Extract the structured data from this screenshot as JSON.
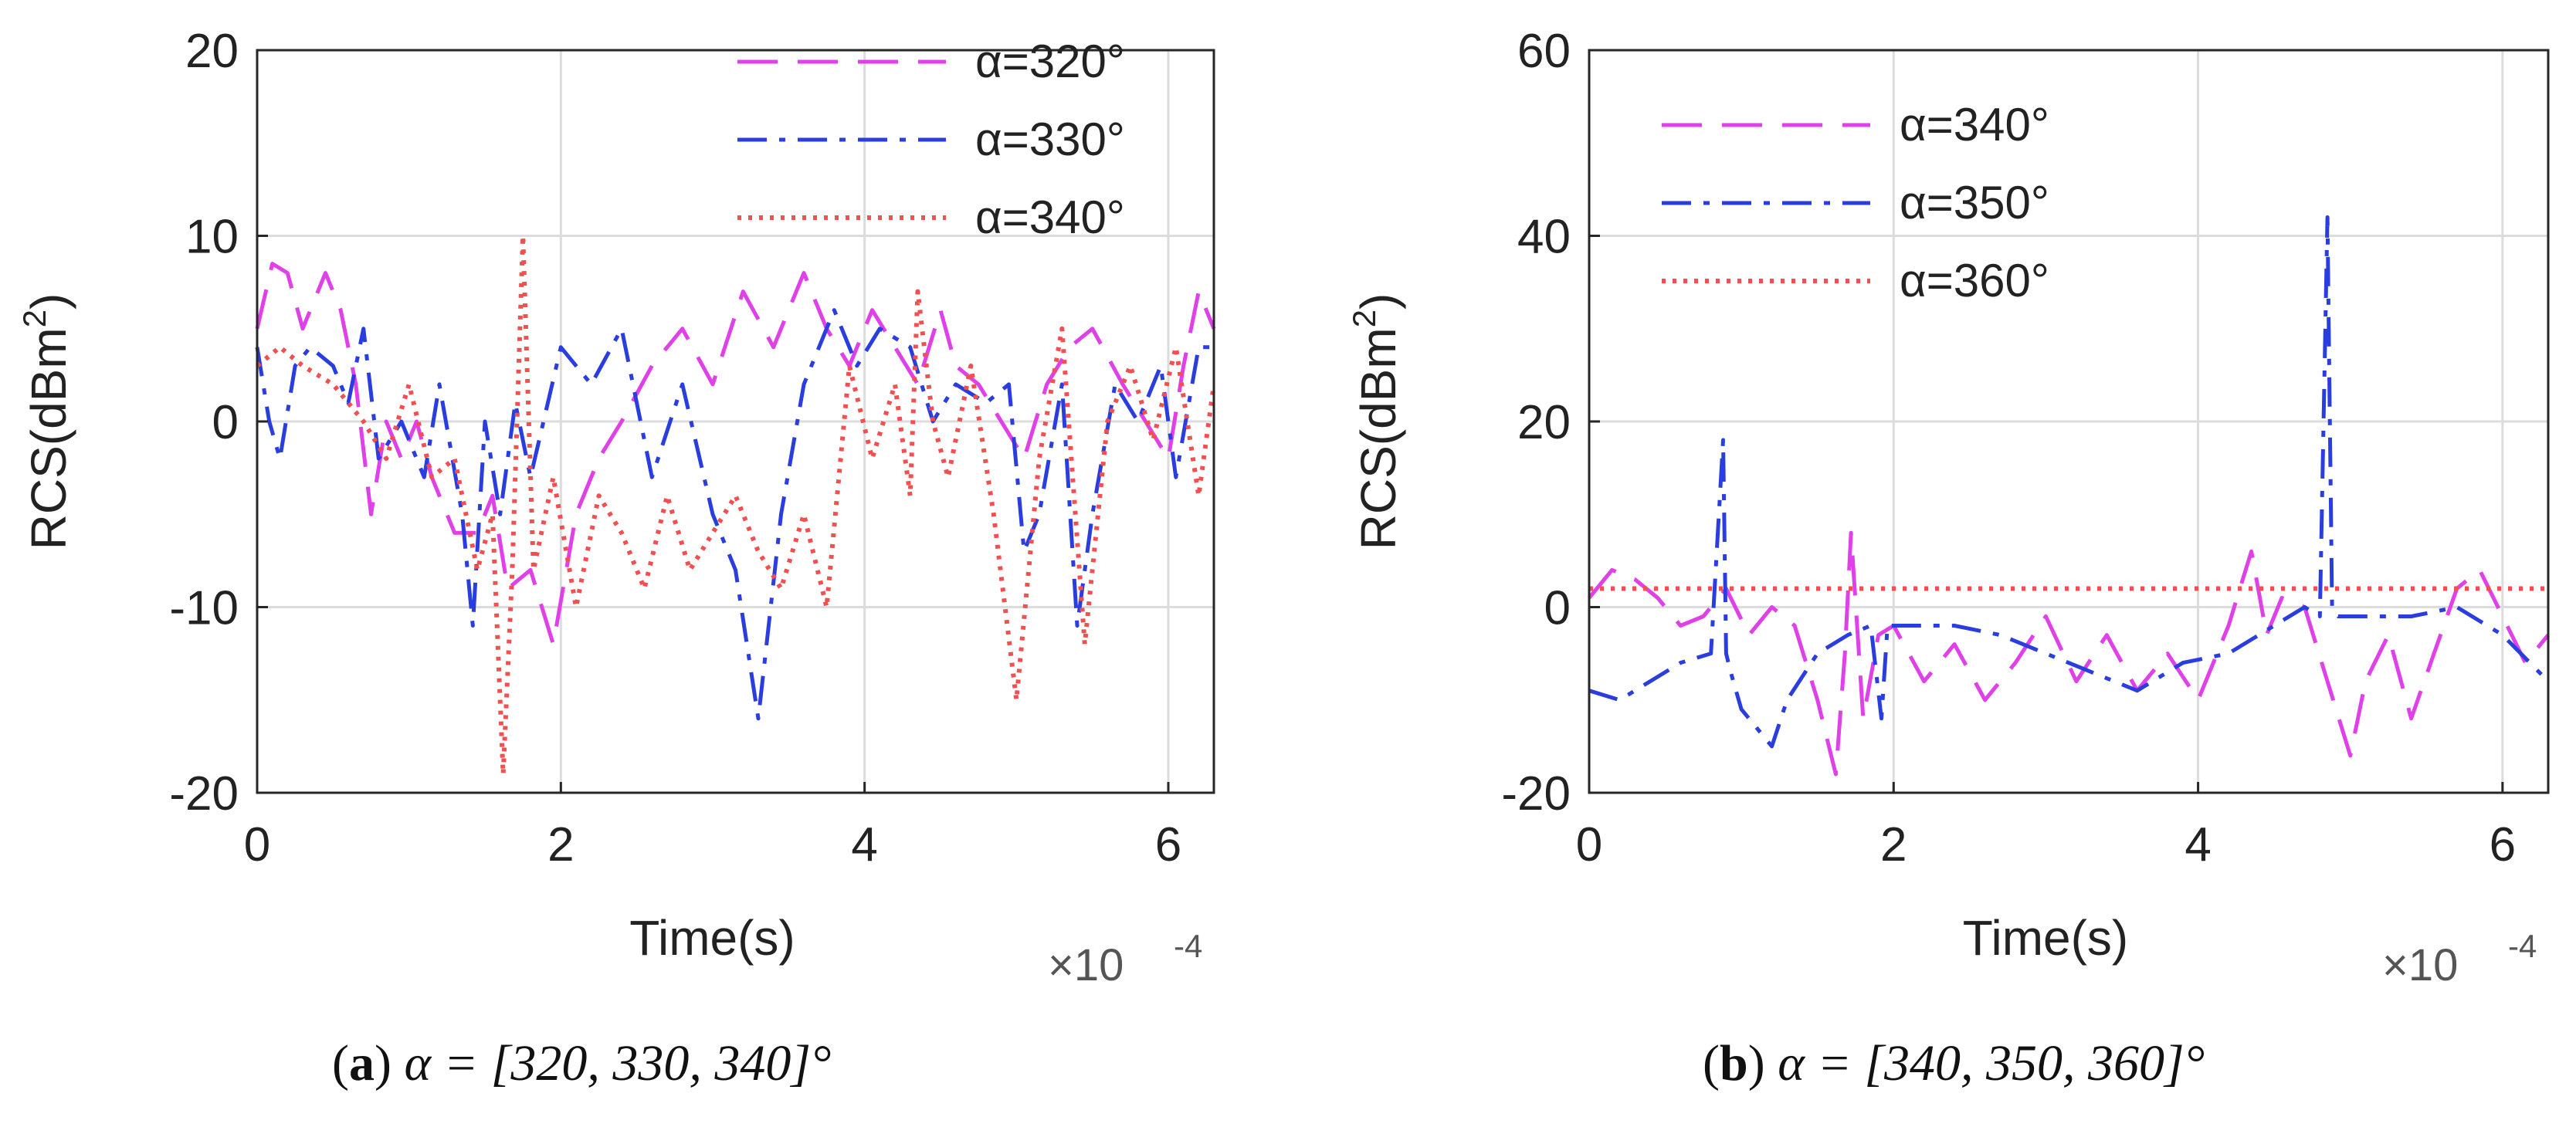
{
  "chart_data": [
    {
      "type": "line",
      "panel": "a",
      "caption_letter": "a",
      "caption_text": "α = [320, 330, 340]°",
      "xlabel": "Time(s)",
      "x_multiplier": "×10",
      "x_multiplier_exp": "-4",
      "ylabel_main": "RCS(dBm",
      "ylabel_sup": "2",
      "ylabel_tail": ")",
      "xlim": [
        0,
        6.3
      ],
      "ylim": [
        -20,
        20
      ],
      "xticks": [
        0,
        2,
        4,
        6
      ],
      "yticks": [
        -20,
        -10,
        0,
        10,
        20
      ],
      "xtick_labels": [
        "0",
        "2",
        "4",
        "6"
      ],
      "ytick_labels": [
        "-20",
        "-10",
        "0",
        "10",
        "20"
      ],
      "grid": true,
      "legend_placement": "top-right",
      "series": [
        {
          "name": "α=320°",
          "color": "#e040e8",
          "dash": "dashed",
          "x": [
            0,
            0.1,
            0.2,
            0.3,
            0.45,
            0.55,
            0.65,
            0.75,
            0.85,
            0.95,
            1.05,
            1.15,
            1.3,
            1.45,
            1.55,
            1.65,
            1.8,
            1.95,
            2.1,
            2.25,
            2.4,
            2.6,
            2.8,
            3.0,
            3.2,
            3.4,
            3.6,
            3.75,
            3.9,
            4.05,
            4.2,
            4.35,
            4.5,
            4.6,
            4.75,
            4.9,
            5.05,
            5.2,
            5.35,
            5.5,
            5.7,
            5.85,
            6.0,
            6.1,
            6.2,
            6.3
          ],
          "values": [
            5,
            8.5,
            8,
            5,
            8,
            6,
            2,
            -5,
            0,
            -2,
            0,
            -3,
            -6,
            -6,
            -4,
            -9,
            -8,
            -12,
            -5,
            -2,
            0,
            3,
            5,
            2,
            7,
            4,
            8,
            5,
            3,
            6,
            4,
            2,
            6,
            3,
            2,
            0,
            -2,
            2,
            4,
            5,
            2,
            0,
            -2,
            3,
            7,
            5
          ]
        },
        {
          "name": "α=330°",
          "color": "#2a3ee0",
          "dash": "dashdot",
          "x": [
            0,
            0.08,
            0.15,
            0.25,
            0.35,
            0.5,
            0.6,
            0.7,
            0.8,
            0.95,
            1.1,
            1.2,
            1.35,
            1.42,
            1.5,
            1.6,
            1.7,
            1.8,
            2.0,
            2.2,
            2.4,
            2.6,
            2.8,
            3.0,
            3.15,
            3.3,
            3.45,
            3.6,
            3.8,
            3.95,
            4.1,
            4.3,
            4.45,
            4.6,
            4.8,
            4.95,
            5.05,
            5.15,
            5.3,
            5.4,
            5.5,
            5.65,
            5.8,
            5.95,
            6.05,
            6.2,
            6.3
          ],
          "values": [
            4,
            0,
            -2,
            3,
            4,
            3,
            1,
            5,
            -2,
            0,
            -3,
            2,
            -5,
            -11,
            0,
            -5,
            1,
            -3,
            4,
            2,
            5,
            -3,
            2,
            -5,
            -8,
            -16,
            -5,
            2,
            6,
            3,
            5,
            4,
            0,
            2,
            1,
            2,
            -7,
            -5,
            2,
            -11,
            -5,
            2,
            0,
            3,
            -3,
            4,
            4
          ]
        },
        {
          "name": "α=340°",
          "color": "#f25050",
          "dash": "dotted",
          "x": [
            0,
            0.15,
            0.3,
            0.5,
            0.7,
            0.85,
            1.0,
            1.15,
            1.3,
            1.45,
            1.55,
            1.62,
            1.68,
            1.75,
            1.82,
            1.95,
            2.1,
            2.25,
            2.4,
            2.55,
            2.7,
            2.85,
            3.0,
            3.15,
            3.3,
            3.45,
            3.6,
            3.75,
            3.9,
            4.05,
            4.2,
            4.3,
            4.35,
            4.45,
            4.55,
            4.7,
            4.85,
            5.0,
            5.15,
            5.3,
            5.45,
            5.6,
            5.75,
            5.9,
            6.05,
            6.2,
            6.3
          ],
          "values": [
            3,
            4,
            3,
            2,
            0,
            -2,
            2,
            -3,
            -2,
            -8,
            -5,
            -19,
            -8,
            10,
            -8,
            -3,
            -10,
            -4,
            -6,
            -9,
            -4,
            -8,
            -6,
            -4,
            -7,
            -9,
            -5,
            -10,
            3,
            -2,
            2,
            -4,
            7,
            0,
            -3,
            3,
            -5,
            -15,
            -2,
            5,
            -12,
            0,
            3,
            -1,
            4,
            -4,
            2
          ]
        }
      ]
    },
    {
      "type": "line",
      "panel": "b",
      "caption_letter": "b",
      "caption_text": "α = [340, 350, 360]°",
      "xlabel": "Time(s)",
      "x_multiplier": "×10",
      "x_multiplier_exp": "-4",
      "ylabel_main": "RCS(dBm",
      "ylabel_sup": "2",
      "ylabel_tail": ")",
      "xlim": [
        0,
        6.3
      ],
      "ylim": [
        -20,
        60
      ],
      "xticks": [
        0,
        2,
        4,
        6
      ],
      "yticks": [
        -20,
        0,
        20,
        40,
        60
      ],
      "xtick_labels": [
        "0",
        "2",
        "4",
        "6"
      ],
      "ytick_labels": [
        "-20",
        "0",
        "20",
        "40",
        "60"
      ],
      "grid": true,
      "legend_placement": "top-left",
      "series": [
        {
          "name": "α=340°",
          "color": "#e040e8",
          "dash": "dashed",
          "x": [
            0,
            0.15,
            0.3,
            0.45,
            0.6,
            0.75,
            0.9,
            1.05,
            1.2,
            1.35,
            1.5,
            1.62,
            1.68,
            1.72,
            1.8,
            1.9,
            2.0,
            2.2,
            2.4,
            2.6,
            2.8,
            3.0,
            3.2,
            3.4,
            3.6,
            3.8,
            4.0,
            4.2,
            4.35,
            4.45,
            4.55,
            4.7,
            4.85,
            5.0,
            5.1,
            5.25,
            5.4,
            5.55,
            5.7,
            5.85,
            6.0,
            6.15,
            6.3
          ],
          "values": [
            1,
            4,
            3,
            1,
            -2,
            -1,
            2,
            -3,
            0,
            -2,
            -10,
            -18,
            -5,
            8,
            -12,
            -3,
            -2,
            -8,
            -4,
            -10,
            -6,
            -1,
            -8,
            -3,
            -9,
            -5,
            -10,
            -2,
            6,
            -3,
            1,
            0,
            -8,
            -16,
            -8,
            -3,
            -12,
            -5,
            2,
            4,
            -1,
            -6,
            -3
          ]
        },
        {
          "name": "α=350°",
          "color": "#2a3ee0",
          "dash": "dashdot",
          "x": [
            0,
            0.2,
            0.4,
            0.6,
            0.8,
            0.88,
            0.9,
            0.93,
            1.0,
            1.2,
            1.3,
            1.5,
            1.7,
            1.85,
            1.92,
            1.96,
            2.1,
            2.4,
            2.7,
            3.0,
            3.3,
            3.6,
            3.9,
            4.2,
            4.5,
            4.7,
            4.8,
            4.85,
            4.88,
            4.92,
            5.1,
            5.4,
            5.7,
            6.0,
            6.3
          ],
          "values": [
            -9,
            -10,
            -8,
            -6,
            -5,
            18,
            -5,
            -7,
            -11,
            -15,
            -10,
            -5,
            -3,
            -2,
            -12,
            -2,
            -2,
            -2,
            -3,
            -5,
            -7,
            -9,
            -6,
            -5,
            -2,
            0,
            -1,
            42,
            0,
            -1,
            -1,
            -1,
            0,
            -3,
            -8
          ]
        },
        {
          "name": "α=360°",
          "color": "#f25050",
          "dash": "dotted",
          "x": [
            0,
            1.0,
            2.0,
            3.0,
            4.0,
            5.0,
            6.0,
            6.3
          ],
          "values": [
            2,
            2,
            2,
            2,
            2,
            2,
            2,
            2
          ]
        }
      ]
    }
  ]
}
